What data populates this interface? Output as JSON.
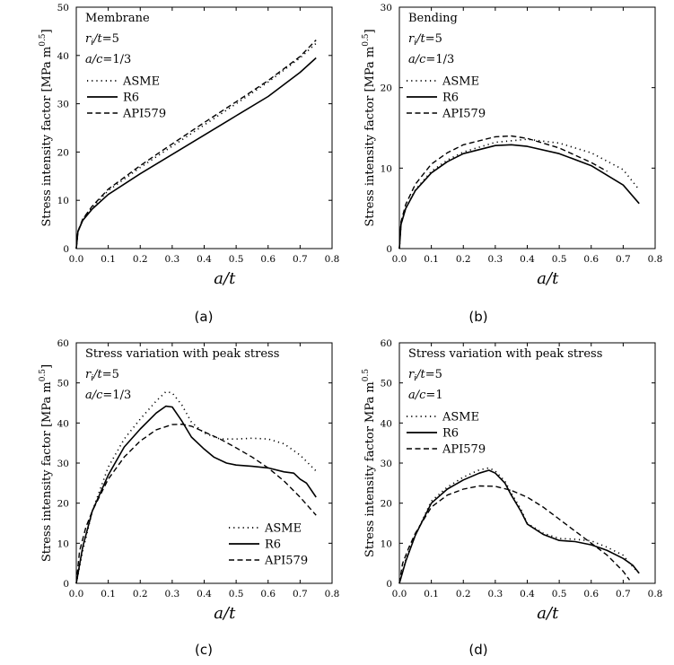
{
  "chart_data": [
    {
      "type": "line",
      "panel": "a",
      "caption": "(a)",
      "xlabel": "a/t",
      "ylabel": "Stress intensity factor [MPa m0.5]",
      "xlim": [
        0,
        0.8
      ],
      "ylim": [
        0,
        50
      ],
      "xticks": [
        "0.0",
        "0.1",
        "0.2",
        "0.3",
        "0.4",
        "0.5",
        "0.6",
        "0.7",
        "0.8"
      ],
      "yticks": [
        "0",
        "10",
        "20",
        "30",
        "40",
        "50"
      ],
      "annotations": [
        "Membrane",
        "ri/t=5",
        "a/c=1/3"
      ],
      "legend_position": "upper-left",
      "series": [
        {
          "name": "ASME",
          "style": "dotted",
          "points": [
            [
              0,
              0
            ],
            [
              0.005,
              3.5
            ],
            [
              0.02,
              6
            ],
            [
              0.05,
              8.5
            ],
            [
              0.1,
              12
            ],
            [
              0.2,
              16.8
            ],
            [
              0.3,
              21.2
            ],
            [
              0.4,
              25.6
            ],
            [
              0.5,
              30
            ],
            [
              0.6,
              34.5
            ],
            [
              0.7,
              39.5
            ],
            [
              0.75,
              42.5
            ]
          ]
        },
        {
          "name": "R6",
          "style": "solid",
          "points": [
            [
              0,
              0
            ],
            [
              0.005,
              3.5
            ],
            [
              0.02,
              5.8
            ],
            [
              0.05,
              8.2
            ],
            [
              0.1,
              11.2
            ],
            [
              0.2,
              15.5
            ],
            [
              0.3,
              19.5
            ],
            [
              0.4,
              23.5
            ],
            [
              0.5,
              27.5
            ],
            [
              0.6,
              31.5
            ],
            [
              0.7,
              36.5
            ],
            [
              0.75,
              39.5
            ]
          ]
        },
        {
          "name": "API579",
          "style": "dashed",
          "points": [
            [
              0,
              0
            ],
            [
              0.005,
              3.6
            ],
            [
              0.02,
              6.1
            ],
            [
              0.05,
              8.8
            ],
            [
              0.1,
              12.3
            ],
            [
              0.2,
              17.2
            ],
            [
              0.3,
              21.7
            ],
            [
              0.4,
              26.1
            ],
            [
              0.5,
              30.4
            ],
            [
              0.6,
              34.8
            ],
            [
              0.7,
              39.8
            ],
            [
              0.75,
              43.2
            ]
          ]
        }
      ]
    },
    {
      "type": "line",
      "panel": "b",
      "caption": "(b)",
      "xlabel": "a/t",
      "ylabel": "Stress intensity factor [MPa m0.5]",
      "xlim": [
        0,
        0.8
      ],
      "ylim": [
        0,
        30
      ],
      "xticks": [
        "0.0",
        "0.1",
        "0.2",
        "0.3",
        "0.4",
        "0.5",
        "0.6",
        "0.7",
        "0.8"
      ],
      "yticks": [
        "0",
        "10",
        "20",
        "30"
      ],
      "annotations": [
        "Bending",
        "ri/t=5",
        "a/c=1/3"
      ],
      "legend_position": "upper-left",
      "series": [
        {
          "name": "ASME",
          "style": "dotted",
          "points": [
            [
              0,
              0
            ],
            [
              0.005,
              3
            ],
            [
              0.02,
              5
            ],
            [
              0.05,
              7.3
            ],
            [
              0.1,
              9.6
            ],
            [
              0.15,
              11
            ],
            [
              0.2,
              12
            ],
            [
              0.3,
              13.2
            ],
            [
              0.4,
              13.6
            ],
            [
              0.5,
              13.1
            ],
            [
              0.6,
              11.9
            ],
            [
              0.7,
              9.8
            ],
            [
              0.75,
              7.3
            ]
          ]
        },
        {
          "name": "R6",
          "style": "solid",
          "points": [
            [
              0,
              0
            ],
            [
              0.005,
              3
            ],
            [
              0.02,
              5
            ],
            [
              0.05,
              7.2
            ],
            [
              0.1,
              9.4
            ],
            [
              0.15,
              10.8
            ],
            [
              0.2,
              11.8
            ],
            [
              0.3,
              12.8
            ],
            [
              0.35,
              12.9
            ],
            [
              0.4,
              12.7
            ],
            [
              0.5,
              11.8
            ],
            [
              0.6,
              10.3
            ],
            [
              0.7,
              7.9
            ],
            [
              0.75,
              5.6
            ]
          ]
        },
        {
          "name": "API579",
          "style": "dashed",
          "points": [
            [
              0,
              0
            ],
            [
              0.005,
              3.3
            ],
            [
              0.02,
              5.5
            ],
            [
              0.05,
              8
            ],
            [
              0.1,
              10.5
            ],
            [
              0.15,
              11.9
            ],
            [
              0.2,
              12.9
            ],
            [
              0.3,
              13.9
            ],
            [
              0.35,
              14
            ],
            [
              0.4,
              13.7
            ],
            [
              0.5,
              12.5
            ],
            [
              0.6,
              10.7
            ],
            [
              0.65,
              9.6
            ]
          ]
        }
      ]
    },
    {
      "type": "line",
      "panel": "c",
      "caption": "(c)",
      "xlabel": "a/t",
      "ylabel": "Stress intensity factor [MPa m0.5]",
      "xlim": [
        0,
        0.8
      ],
      "ylim": [
        0,
        60
      ],
      "xticks": [
        "0.0",
        "0.1",
        "0.2",
        "0.3",
        "0.4",
        "0.5",
        "0.6",
        "0.7",
        "0.8"
      ],
      "yticks": [
        "0",
        "10",
        "20",
        "30",
        "40",
        "50",
        "60"
      ],
      "annotations": [
        "Stress variation with peak stress",
        "ri/t=5",
        "a/c=1/3"
      ],
      "legend_position": "lower-right",
      "series": [
        {
          "name": "ASME",
          "style": "dotted",
          "points": [
            [
              0,
              0
            ],
            [
              0.02,
              8
            ],
            [
              0.05,
              18
            ],
            [
              0.1,
              29
            ],
            [
              0.15,
              36
            ],
            [
              0.2,
              41
            ],
            [
              0.25,
              45.5
            ],
            [
              0.28,
              47.8
            ],
            [
              0.3,
              47.5
            ],
            [
              0.33,
              44.5
            ],
            [
              0.36,
              40.2
            ],
            [
              0.4,
              37.5
            ],
            [
              0.45,
              36
            ],
            [
              0.5,
              36
            ],
            [
              0.55,
              36.2
            ],
            [
              0.6,
              36
            ],
            [
              0.65,
              34.8
            ],
            [
              0.7,
              32
            ],
            [
              0.75,
              28
            ]
          ]
        },
        {
          "name": "R6",
          "style": "solid",
          "points": [
            [
              0,
              0
            ],
            [
              0.02,
              9
            ],
            [
              0.05,
              18
            ],
            [
              0.1,
              27
            ],
            [
              0.15,
              34
            ],
            [
              0.2,
              38.5
            ],
            [
              0.25,
              42.5
            ],
            [
              0.28,
              44.2
            ],
            [
              0.3,
              44
            ],
            [
              0.33,
              40.5
            ],
            [
              0.36,
              36.5
            ],
            [
              0.4,
              33.5
            ],
            [
              0.43,
              31.5
            ],
            [
              0.47,
              30
            ],
            [
              0.5,
              29.5
            ],
            [
              0.55,
              29.2
            ],
            [
              0.6,
              28.8
            ],
            [
              0.65,
              27.8
            ],
            [
              0.68,
              27.5
            ],
            [
              0.7,
              26
            ],
            [
              0.72,
              25
            ],
            [
              0.75,
              21.5
            ]
          ]
        },
        {
          "name": "API579",
          "style": "dashed",
          "points": [
            [
              0,
              0
            ],
            [
              0.01,
              8
            ],
            [
              0.03,
              14
            ],
            [
              0.05,
              18
            ],
            [
              0.1,
              26
            ],
            [
              0.15,
              31.5
            ],
            [
              0.2,
              35.5
            ],
            [
              0.25,
              38.3
            ],
            [
              0.3,
              39.6
            ],
            [
              0.33,
              39.7
            ],
            [
              0.36,
              39.2
            ],
            [
              0.4,
              37.8
            ],
            [
              0.45,
              36
            ],
            [
              0.5,
              33.8
            ],
            [
              0.55,
              31.5
            ],
            [
              0.6,
              28.8
            ],
            [
              0.65,
              25.5
            ],
            [
              0.7,
              21.5
            ],
            [
              0.75,
              17
            ]
          ]
        }
      ]
    },
    {
      "type": "line",
      "panel": "d",
      "caption": "(d)",
      "xlabel": "a/t",
      "ylabel": "Stress intensity factor MPa m0.5",
      "xlim": [
        0,
        0.8
      ],
      "ylim": [
        0,
        60
      ],
      "xticks": [
        "0.0",
        "0.1",
        "0.2",
        "0.3",
        "0.4",
        "0.5",
        "0.6",
        "0.7",
        "0.8"
      ],
      "yticks": [
        "0",
        "10",
        "20",
        "30",
        "40",
        "50",
        "60"
      ],
      "annotations": [
        "Stress variation with peak stress",
        "ri/t=5",
        "a/c=1"
      ],
      "legend_position": "middle-left",
      "series": [
        {
          "name": "ASME",
          "style": "dotted",
          "points": [
            [
              0,
              0
            ],
            [
              0.02,
              6
            ],
            [
              0.05,
              12
            ],
            [
              0.1,
              20.5
            ],
            [
              0.15,
              24
            ],
            [
              0.2,
              26.5
            ],
            [
              0.25,
              28.3
            ],
            [
              0.28,
              28.8
            ],
            [
              0.3,
              28
            ],
            [
              0.33,
              25.5
            ],
            [
              0.35,
              22.5
            ],
            [
              0.38,
              18.5
            ],
            [
              0.4,
              15
            ],
            [
              0.45,
              12.5
            ],
            [
              0.5,
              11.2
            ],
            [
              0.55,
              11
            ],
            [
              0.6,
              10.6
            ],
            [
              0.65,
              9
            ],
            [
              0.7,
              7
            ],
            [
              0.72,
              5
            ],
            [
              0.75,
              2.5
            ]
          ]
        },
        {
          "name": "R6",
          "style": "solid",
          "points": [
            [
              0,
              0
            ],
            [
              0.02,
              5.5
            ],
            [
              0.05,
              12
            ],
            [
              0.1,
              20
            ],
            [
              0.15,
              23.5
            ],
            [
              0.2,
              25.8
            ],
            [
              0.25,
              27.5
            ],
            [
              0.28,
              28.2
            ],
            [
              0.3,
              27.5
            ],
            [
              0.33,
              25
            ],
            [
              0.35,
              22
            ],
            [
              0.38,
              18
            ],
            [
              0.4,
              14.8
            ],
            [
              0.45,
              12.2
            ],
            [
              0.5,
              10.7
            ],
            [
              0.55,
              10.4
            ],
            [
              0.6,
              9.6
            ],
            [
              0.63,
              8.8
            ],
            [
              0.65,
              8.2
            ],
            [
              0.7,
              6.2
            ],
            [
              0.73,
              4.5
            ],
            [
              0.75,
              2.5
            ]
          ]
        },
        {
          "name": "API579",
          "style": "dashed",
          "points": [
            [
              0,
              0
            ],
            [
              0.01,
              5
            ],
            [
              0.03,
              9
            ],
            [
              0.05,
              12.5
            ],
            [
              0.1,
              19
            ],
            [
              0.15,
              22
            ],
            [
              0.2,
              23.5
            ],
            [
              0.25,
              24.3
            ],
            [
              0.3,
              24.2
            ],
            [
              0.35,
              23.2
            ],
            [
              0.4,
              21.5
            ],
            [
              0.45,
              19
            ],
            [
              0.5,
              16
            ],
            [
              0.55,
              13
            ],
            [
              0.6,
              10
            ],
            [
              0.65,
              7
            ],
            [
              0.7,
              3
            ],
            [
              0.72,
              0.8
            ]
          ]
        }
      ]
    }
  ]
}
